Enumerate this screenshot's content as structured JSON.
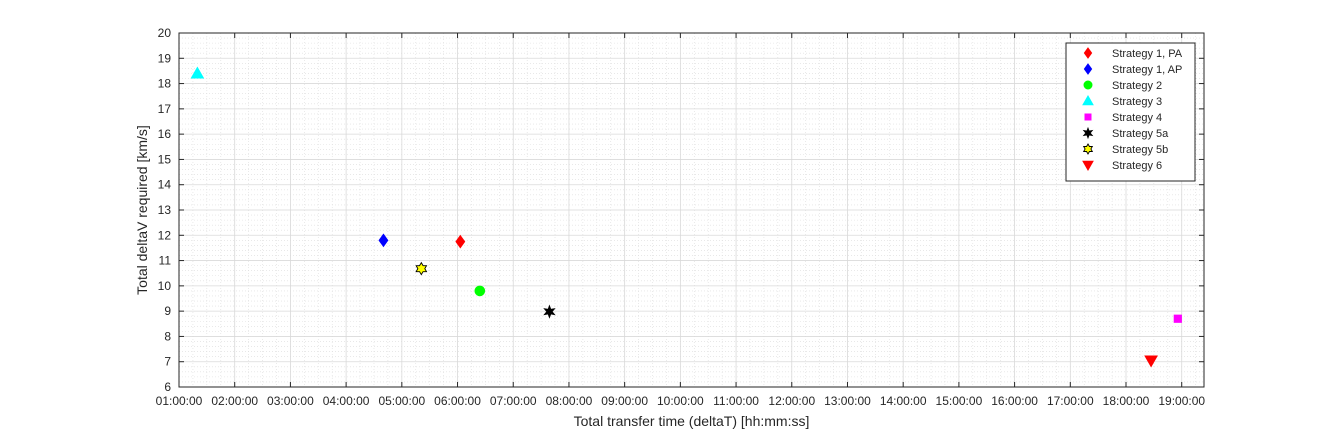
{
  "chart_data": {
    "type": "scatter",
    "xlabel": "Total transfer time (deltaT) [hh:mm:ss]",
    "ylabel": "Total deltaV required [km/s]",
    "x_unit": "hours",
    "xlim": [
      1,
      19.4
    ],
    "ylim": [
      6,
      20
    ],
    "x_ticks": [
      "01:00:00",
      "02:00:00",
      "03:00:00",
      "04:00:00",
      "05:00:00",
      "06:00:00",
      "07:00:00",
      "08:00:00",
      "09:00:00",
      "10:00:00",
      "11:00:00",
      "12:00:00",
      "13:00:00",
      "14:00:00",
      "15:00:00",
      "16:00:00",
      "17:00:00",
      "18:00:00",
      "19:00:00"
    ],
    "y_ticks": [
      "6",
      "7",
      "8",
      "9",
      "10",
      "11",
      "12",
      "13",
      "14",
      "15",
      "16",
      "17",
      "18",
      "19",
      "20"
    ],
    "grid": true,
    "minor_grid": true,
    "legend_position": "top-right",
    "series": [
      {
        "name": "Strategy 1, PA",
        "marker": "diamond",
        "color": "#ff0000",
        "x": 6.05,
        "y": 11.75
      },
      {
        "name": "Strategy 1, AP",
        "marker": "diamond",
        "color": "#0000ff",
        "x": 4.67,
        "y": 11.8
      },
      {
        "name": "Strategy 2",
        "marker": "circle",
        "color": "#00ff00",
        "x": 6.4,
        "y": 9.8
      },
      {
        "name": "Strategy 3",
        "marker": "triangle-up",
        "color": "#00ffff",
        "x": 1.33,
        "y": 18.4
      },
      {
        "name": "Strategy 4",
        "marker": "square",
        "color": "#ff00ff",
        "x": 18.93,
        "y": 8.7
      },
      {
        "name": "Strategy 5a",
        "marker": "star",
        "color": "#000000",
        "x": 7.65,
        "y": 8.98
      },
      {
        "name": "Strategy 5b",
        "marker": "hexagram",
        "color": "#ffff00",
        "x": 5.35,
        "y": 10.68
      },
      {
        "name": "Strategy 6",
        "marker": "triangle-down",
        "color": "#ff0000",
        "x": 18.45,
        "y": 7.05
      }
    ]
  }
}
